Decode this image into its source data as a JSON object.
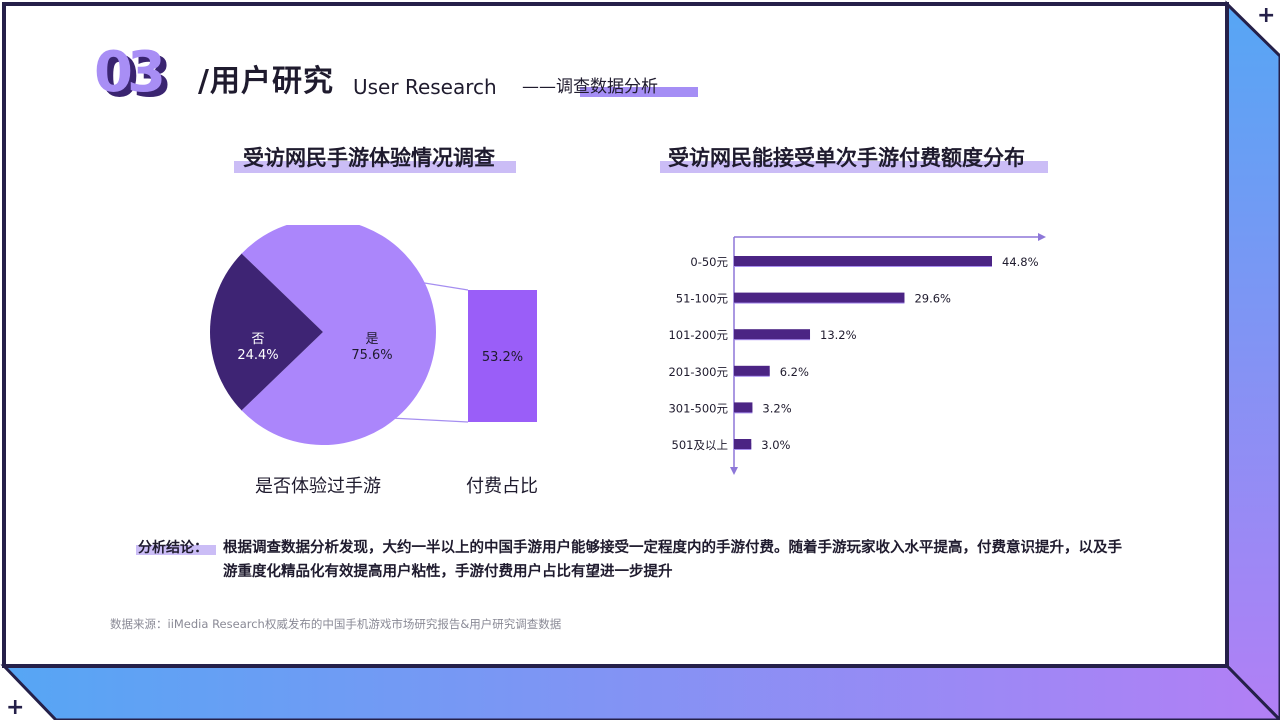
{
  "header": {
    "number": "03",
    "title": "/用户研究",
    "title_en": "User Research",
    "subtitle": "——调查数据分析"
  },
  "colors": {
    "frame_dark": "#252049",
    "frame_gradient_start": "#56a6f4",
    "frame_gradient_end": "#b27ff5",
    "pie_yes": "#ab86fb",
    "pie_no": "#3e2474",
    "bar_main": "#4b2484",
    "bar_shadow": "#a88ef0",
    "highlight": "#cbbdf6"
  },
  "chart_data": [
    {
      "type": "pie",
      "title": "受访网民手游体验情况调查",
      "caption": "是否体验过手游",
      "slices": [
        {
          "label": "是",
          "value": 75.6,
          "display": "75.6%"
        },
        {
          "label": "否",
          "value": 24.4,
          "display": "24.4%"
        }
      ],
      "breakout": {
        "caption": "付费占比",
        "value": 53.2,
        "display": "53.2%"
      }
    },
    {
      "type": "bar",
      "orientation": "horizontal",
      "title": "受访网民能接受单次手游付费额度分布",
      "categories": [
        "0-50元",
        "51-100元",
        "101-200元",
        "201-300元",
        "301-500元",
        "501及以上"
      ],
      "values": [
        44.8,
        29.6,
        13.2,
        6.2,
        3.2,
        3.0
      ],
      "labels": [
        "44.8%",
        "29.6%",
        "13.2%",
        "6.2%",
        "3.2%",
        "3.0%"
      ]
    }
  ],
  "conclusion": {
    "label": "分析结论：",
    "text": "根据调查数据分析发现，大约一半以上的中国手游用户能够接受一定程度内的手游付费。随着手游玩家收入水平提高，付费意识提升，以及手游重度化精品化有效提高用户粘性，手游付费用户占比有望进一步提升"
  },
  "source": "数据来源：iiMedia Research权威发布的中国手机游戏市场研究报告&用户研究调查数据",
  "decor": {
    "plus": "+"
  }
}
